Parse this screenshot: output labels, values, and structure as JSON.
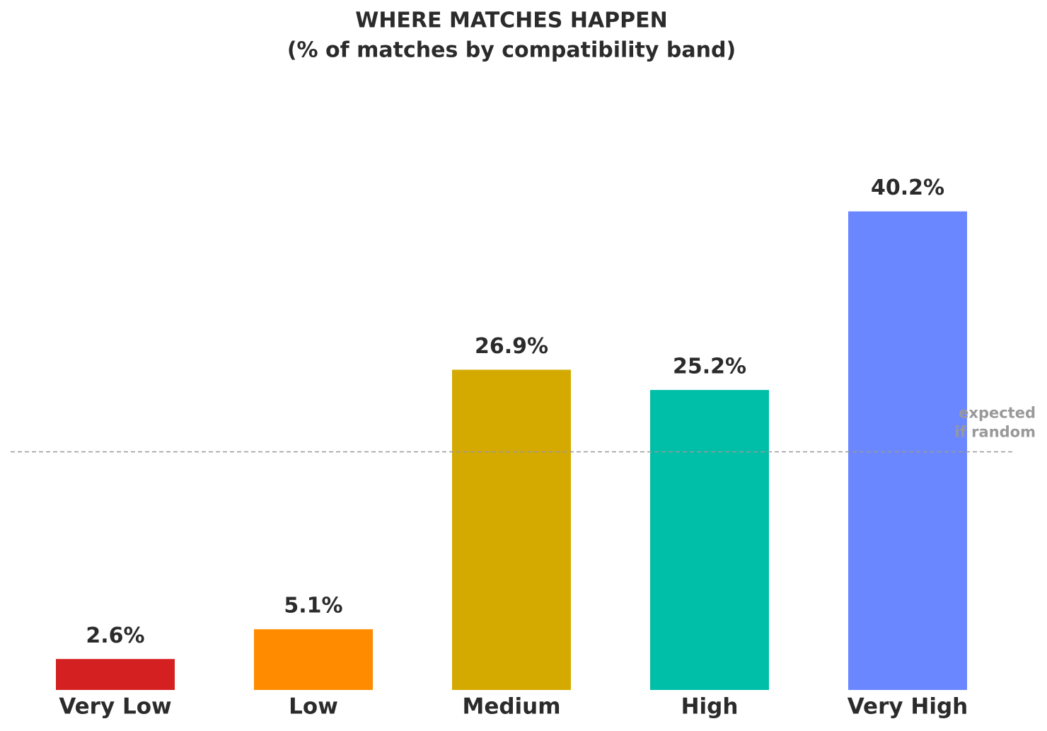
{
  "chart_data": {
    "type": "bar",
    "title": "WHERE MATCHES HAPPEN",
    "subtitle": "(% of matches by compatibility band)",
    "categories": [
      "Very Low",
      "Low",
      "Medium",
      "High",
      "Very High"
    ],
    "values": [
      2.6,
      5.1,
      26.9,
      25.2,
      40.2
    ],
    "value_labels": [
      "2.6%",
      "5.1%",
      "26.9%",
      "25.2%",
      "40.2%"
    ],
    "colors": [
      "#d42020",
      "#ff8c00",
      "#d4aa00",
      "#00bfa8",
      "#6a87ff"
    ],
    "ylim": [
      0,
      45
    ],
    "reference_line": {
      "value": 20,
      "label": [
        "expected",
        "if random"
      ],
      "color": "#999999"
    }
  }
}
